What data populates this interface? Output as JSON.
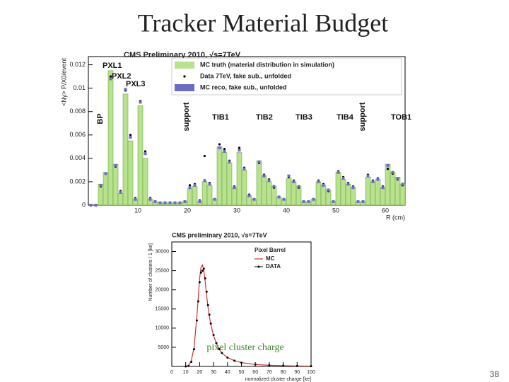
{
  "title": "Tracker Material Budget",
  "caption": "pixel cluster charge",
  "page_number": "38",
  "chart_data": [
    {
      "type": "histogram",
      "title": "CMS Preliminary 2010, √s=7TeV",
      "x_label": "R (cm)",
      "y_label": "<Nγ> P/X0/event",
      "bins": [
        0,
        1,
        2,
        3,
        4,
        5,
        6,
        7,
        8,
        9,
        10,
        11,
        12,
        13,
        14,
        15,
        16,
        17,
        18,
        19,
        20,
        21,
        22,
        23,
        24,
        25,
        26,
        27,
        28,
        29,
        30,
        31,
        32,
        33,
        34,
        35,
        36,
        37,
        38,
        39,
        40,
        41,
        42,
        43,
        44,
        45,
        46,
        47,
        48,
        49,
        50,
        51,
        52,
        53,
        54,
        55,
        56,
        57,
        58,
        59,
        60,
        61,
        62,
        63,
        64
      ],
      "series": [
        {
          "name": "MC truth (material distribution in simulation)",
          "color": "#b8e28e",
          "style": "bar",
          "values": [
            0,
            0,
            0.0018,
            0.0028,
            0.0115,
            0.0035,
            0.001,
            0.0095,
            0.0055,
            0.0005,
            0.0085,
            0.004,
            0.0005,
            0.0003,
            0.0002,
            0.0002,
            0.0002,
            0.0002,
            0.0002,
            0.0003,
            0.0014,
            0.0016,
            0.0003,
            0.002,
            0.0017,
            0.0005,
            0.005,
            0.0045,
            0.0036,
            0.0015,
            0.0045,
            0.003,
            0.0008,
            0.0005,
            0.0038,
            0.0025,
            0.002,
            0.0016,
            0.0007,
            0.0005,
            0.0023,
            0.002,
            0.0016,
            0.0003,
            0.0003,
            0.0005,
            0.002,
            0.0017,
            0.0013,
            0.0003,
            0.0028,
            0.0022,
            0.0018,
            0.0015,
            0.0003,
            0.0003,
            0.0024,
            0.002,
            0.0022,
            0.0015,
            0.0035,
            0.0028,
            0.0024,
            0.0018
          ]
        },
        {
          "name": "Data 7TeV, fake sub., unfolded",
          "color": "#000000",
          "style": "points",
          "values": [
            0,
            0,
            0.0016,
            0.0027,
            0.011,
            0.0033,
            0.0012,
            0.0098,
            0.006,
            0.0006,
            0.0089,
            0.0046,
            0.0006,
            0.0003,
            0.0002,
            0.0002,
            0.0002,
            0.0002,
            0.0002,
            0.0003,
            0.0017,
            0.0018,
            0.0004,
            0.0042,
            0.0019,
            0.0005,
            0.0052,
            0.0048,
            0.0038,
            0.0016,
            0.0049,
            0.0032,
            0.0009,
            0.0005,
            0.0036,
            0.0026,
            0.0022,
            0.0015,
            0.0007,
            0.0005,
            0.0024,
            0.0021,
            0.0015,
            0.0003,
            0.0003,
            0.0005,
            0.0021,
            0.0018,
            0.0012,
            0.0003,
            0.0029,
            0.0024,
            0.0019,
            0.0016,
            0.0003,
            0.0003,
            0.0026,
            0.0021,
            0.0023,
            0.0016,
            0.0031,
            0.0027,
            0.0022,
            0.0017
          ]
        },
        {
          "name": "MC reco, fake sub., unfolded",
          "color": "#6a6ac8",
          "style": "squares",
          "values": [
            0,
            0,
            0.0017,
            0.0027,
            0.0108,
            0.0034,
            0.0011,
            0.0099,
            0.0058,
            0.0005,
            0.0088,
            0.0044,
            0.0005,
            0.0003,
            0.0002,
            0.0002,
            0.0002,
            0.0002,
            0.0002,
            0.0003,
            0.0015,
            0.0017,
            0.0003,
            0.0021,
            0.0018,
            0.0005,
            0.0049,
            0.0046,
            0.0037,
            0.0015,
            0.0047,
            0.0031,
            0.0008,
            0.0005,
            0.0037,
            0.0025,
            0.0021,
            0.0016,
            0.0007,
            0.0005,
            0.0025,
            0.002,
            0.0016,
            0.0003,
            0.0003,
            0.0005,
            0.002,
            0.0017,
            0.0013,
            0.0003,
            0.0028,
            0.0023,
            0.0018,
            0.0015,
            0.0003,
            0.0003,
            0.0025,
            0.002,
            0.0022,
            0.0015,
            0.0034,
            0.0028,
            0.0023,
            0.0018
          ]
        }
      ],
      "annotations": [
        "PXL1",
        "PXL2",
        "PXL3",
        "BP",
        "support",
        "TIB1",
        "TIB2",
        "TIB3",
        "TIB4",
        "support",
        "TOB1"
      ],
      "xlim": [
        0,
        64
      ],
      "ylim": [
        0,
        0.0127
      ],
      "xticks": [
        10,
        20,
        30,
        40,
        50,
        60
      ],
      "yticks": [
        0,
        0.002,
        0.004,
        0.006,
        0.008,
        0.01,
        0.012
      ]
    },
    {
      "type": "line",
      "title": "CMS preliminary 2010, √s=7TeV",
      "x_label": "normalized cluster charge [ke]",
      "y_label": "Number of clusters / 1 [ke]",
      "legend_title": "Pixel Barrel",
      "x": [
        10,
        12,
        14,
        16,
        18,
        19,
        20,
        21,
        22,
        23,
        24,
        25,
        26,
        27,
        28,
        30,
        32,
        34,
        36,
        40,
        45,
        50,
        60,
        70,
        80,
        90,
        100
      ],
      "series": [
        {
          "name": "MC",
          "color": "#d03030",
          "style": "line",
          "values": [
            0,
            200,
            1500,
            5000,
            13000,
            18000,
            23000,
            26000,
            26500,
            25000,
            22000,
            18500,
            15500,
            13000,
            11000,
            8000,
            6000,
            4500,
            3500,
            2300,
            1500,
            1000,
            500,
            300,
            200,
            120,
            80
          ]
        },
        {
          "name": "DATA",
          "color": "#000000",
          "style": "points",
          "values": [
            0,
            150,
            1200,
            4500,
            12000,
            17000,
            22000,
            24500,
            25000,
            25500,
            23000,
            19500,
            16000,
            13500,
            11200,
            8200,
            6100,
            4600,
            3500,
            2300,
            1500,
            1000,
            500,
            300,
            200,
            120,
            80
          ]
        }
      ],
      "xlim": [
        0,
        100
      ],
      "ylim": [
        0,
        32500
      ],
      "xticks": [
        0,
        10,
        20,
        30,
        40,
        50,
        60,
        70,
        80,
        90,
        100
      ],
      "yticks": [
        5000,
        10000,
        15000,
        20000,
        25000,
        30000
      ]
    }
  ]
}
